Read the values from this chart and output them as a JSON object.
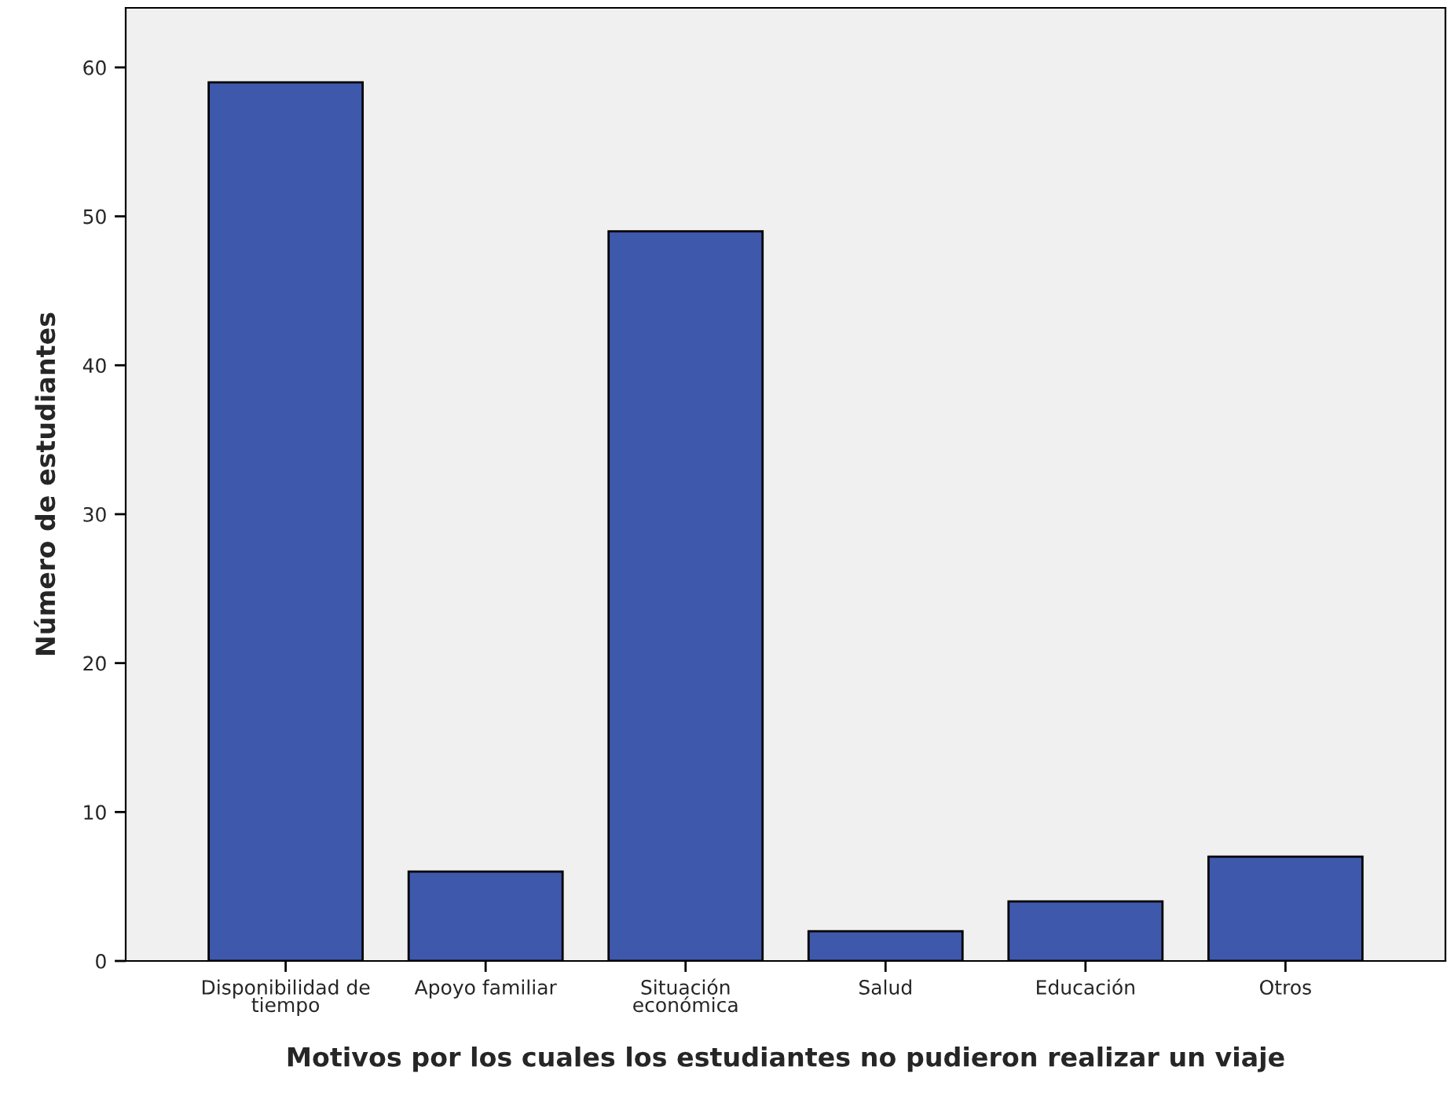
{
  "chart_data": {
    "type": "bar",
    "xlabel": "Motivos por los cuales los estudiantes no pudieron realizar un viaje",
    "ylabel": "Número de estudiantes",
    "categories": [
      "Disponibilidad de\ntiempo",
      "Apoyo familiar",
      "Situación\neconómica",
      "Salud",
      "Educación",
      "Otros"
    ],
    "values": [
      59,
      6,
      49,
      2,
      4,
      7
    ],
    "color": "#3e58ac",
    "ylim": [
      0,
      64
    ],
    "yticks": [
      0,
      10,
      20,
      30,
      40,
      50,
      60
    ],
    "grid": false
  }
}
